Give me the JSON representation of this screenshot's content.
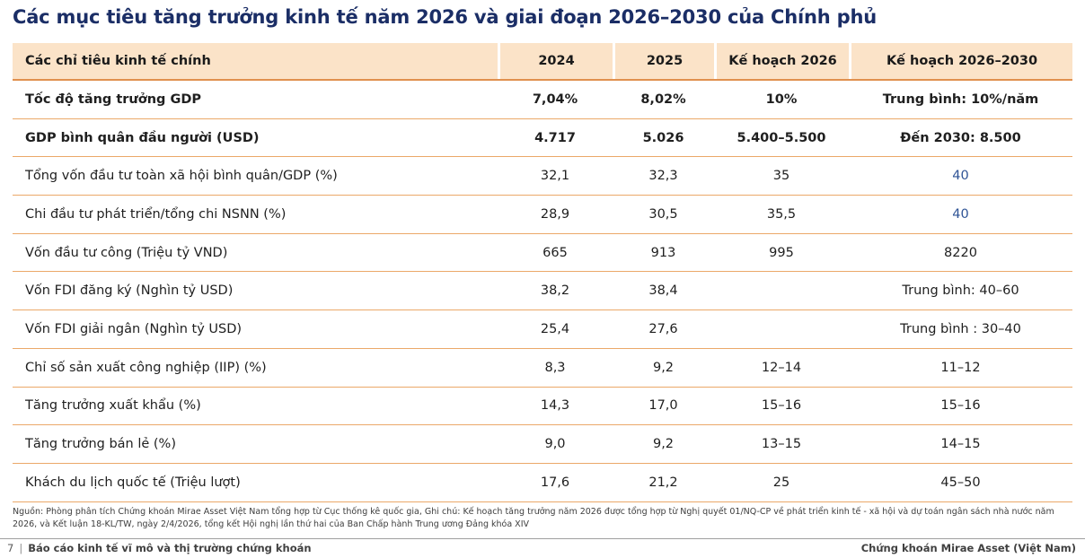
{
  "title": "Các mục tiêu tăng trưởng kinh tế năm 2026 và giai đoạn 2026–2030 của Chính phủ",
  "table": {
    "columns": [
      "Các chỉ tiêu kinh tế chính",
      "2024",
      "2025",
      "Kế hoạch 2026",
      "Kế hoạch 2026–2030"
    ],
    "rows": [
      {
        "cells": [
          "Tốc độ tăng trưởng GDP",
          "7,04%",
          "8,02%",
          "10%",
          "Trung bình: 10%/năm"
        ],
        "bold": true,
        "blue_cols": []
      },
      {
        "cells": [
          "GDP bình quân đầu người (USD)",
          "4.717",
          "5.026",
          "5.400–5.500",
          "Đến 2030: 8.500"
        ],
        "bold": true,
        "blue_cols": []
      },
      {
        "cells": [
          "Tổng vốn đầu tư toàn xã hội bình quân/GDP (%)",
          "32,1",
          "32,3",
          "35",
          "40"
        ],
        "bold": false,
        "blue_cols": [
          4
        ]
      },
      {
        "cells": [
          "Chi đầu tư phát triển/tổng chi NSNN (%)",
          "28,9",
          "30,5",
          "35,5",
          "40"
        ],
        "bold": false,
        "blue_cols": [
          4
        ]
      },
      {
        "cells": [
          "Vốn đầu tư công (Triệu tỷ VND)",
          "665",
          "913",
          "995",
          "8220"
        ],
        "bold": false,
        "blue_cols": []
      },
      {
        "cells": [
          "Vốn FDI đăng ký (Nghìn tỷ USD)",
          "38,2",
          "38,4",
          "",
          "Trung bình: 40–60"
        ],
        "bold": false,
        "blue_cols": []
      },
      {
        "cells": [
          "Vốn FDI giải ngân (Nghìn tỷ USD)",
          "25,4",
          "27,6",
          "",
          "Trung bình : 30–40"
        ],
        "bold": false,
        "blue_cols": []
      },
      {
        "cells": [
          "Chỉ số sản xuất công nghiệp (IIP) (%)",
          "8,3",
          "9,2",
          "12–14",
          "11–12"
        ],
        "bold": false,
        "blue_cols": []
      },
      {
        "cells": [
          "Tăng trưởng xuất khẩu (%)",
          "14,3",
          "17,0",
          "15–16",
          "15–16"
        ],
        "bold": false,
        "blue_cols": []
      },
      {
        "cells": [
          "Tăng trưởng bán lẻ (%)",
          "9,0",
          "9,2",
          "13–15",
          "14–15"
        ],
        "bold": false,
        "blue_cols": []
      },
      {
        "cells": [
          "Khách du lịch quốc tế (Triệu lượt)",
          "17,6",
          "21,2",
          "25",
          "45–50"
        ],
        "bold": false,
        "blue_cols": []
      }
    ]
  },
  "footnote": "Nguồn: Phòng phân tích Chứng khoán Mirae Asset Việt Nam tổng hợp từ Cục thống kê quốc gia, Ghi chú: Kế hoạch tăng trưởng năm 2026 được tổng hợp từ Nghị quyết 01/NQ-CP về phát triển kinh tế - xã hội và dự toán ngân sách nhà nước năm 2026, và Kết luận 18-KL/TW, ngày 2/4/2026, tổng kết Hội nghị lần thứ hai của Ban Chấp hành Trung ương Đảng khóa XIV",
  "footer": {
    "page_number": "7",
    "separator": "|",
    "left": "Báo cáo kinh tế vĩ mô và thị trường chứng khoán",
    "right": "Chứng khoán Mirae Asset (Việt Nam)"
  },
  "colors": {
    "title_navy": "#1b2e66",
    "header_bg": "#fbe3c8",
    "header_border": "#e0904e",
    "row_border": "#eba869",
    "body_text": "#1f1f1f",
    "highlight_blue": "#2f5496",
    "footnote_text": "#3d3d3d"
  }
}
